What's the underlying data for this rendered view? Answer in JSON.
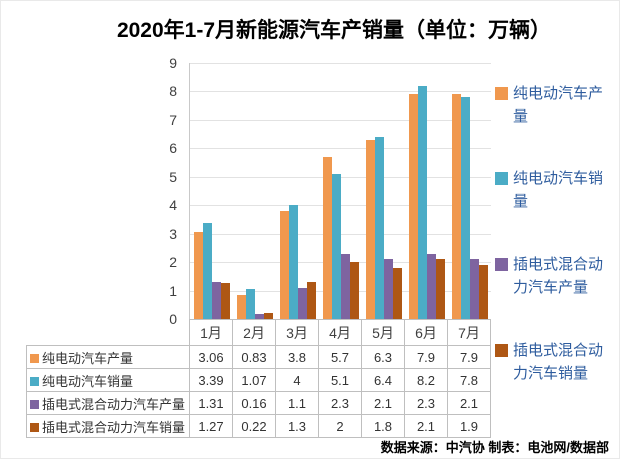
{
  "title": "2020年1-7月新能源汽车产销量（单位：万辆）",
  "source_note": "数据来源：中汽协  制表：电池网/数据部",
  "colors": {
    "bev_production": "#F0984E",
    "bev_sales": "#4BACC6",
    "phev_production": "#7E64A0",
    "phev_sales": "#AE5714",
    "legend_text": "#2E5C9E",
    "axis_text": "#3F3F3F",
    "gridline": "#E2E2E2",
    "table_border": "#BFBFBF"
  },
  "chart_data": {
    "type": "bar",
    "title": "2020年1-7月新能源汽车产销量（单位：万辆）",
    "categories": [
      "1月",
      "2月",
      "3月",
      "4月",
      "5月",
      "6月",
      "7月"
    ],
    "series": [
      {
        "name": "纯电动汽车产量",
        "color": "#F0984E",
        "values": [
          3.06,
          0.83,
          3.8,
          5.7,
          6.3,
          7.9,
          7.9
        ]
      },
      {
        "name": "纯电动汽车销量",
        "color": "#4BACC6",
        "values": [
          3.39,
          1.07,
          4,
          5.1,
          6.4,
          8.2,
          7.8
        ]
      },
      {
        "name": "插电式混合动力汽车产量",
        "color": "#7E64A0",
        "values": [
          1.31,
          0.16,
          1.1,
          2.3,
          2.1,
          2.3,
          2.1
        ]
      },
      {
        "name": "插电式混合动力汽车销量",
        "color": "#AE5714",
        "values": [
          1.27,
          0.22,
          1.3,
          2,
          1.8,
          2.1,
          1.9
        ]
      }
    ],
    "xlabel": "",
    "ylabel": "",
    "ylim": [
      0,
      9
    ],
    "ytick_interval": 1,
    "yticks": [
      "0",
      "1",
      "2",
      "3",
      "4",
      "5",
      "6",
      "7",
      "8",
      "9"
    ],
    "grid": true,
    "legend_position": "right",
    "data_table_shown": true
  }
}
